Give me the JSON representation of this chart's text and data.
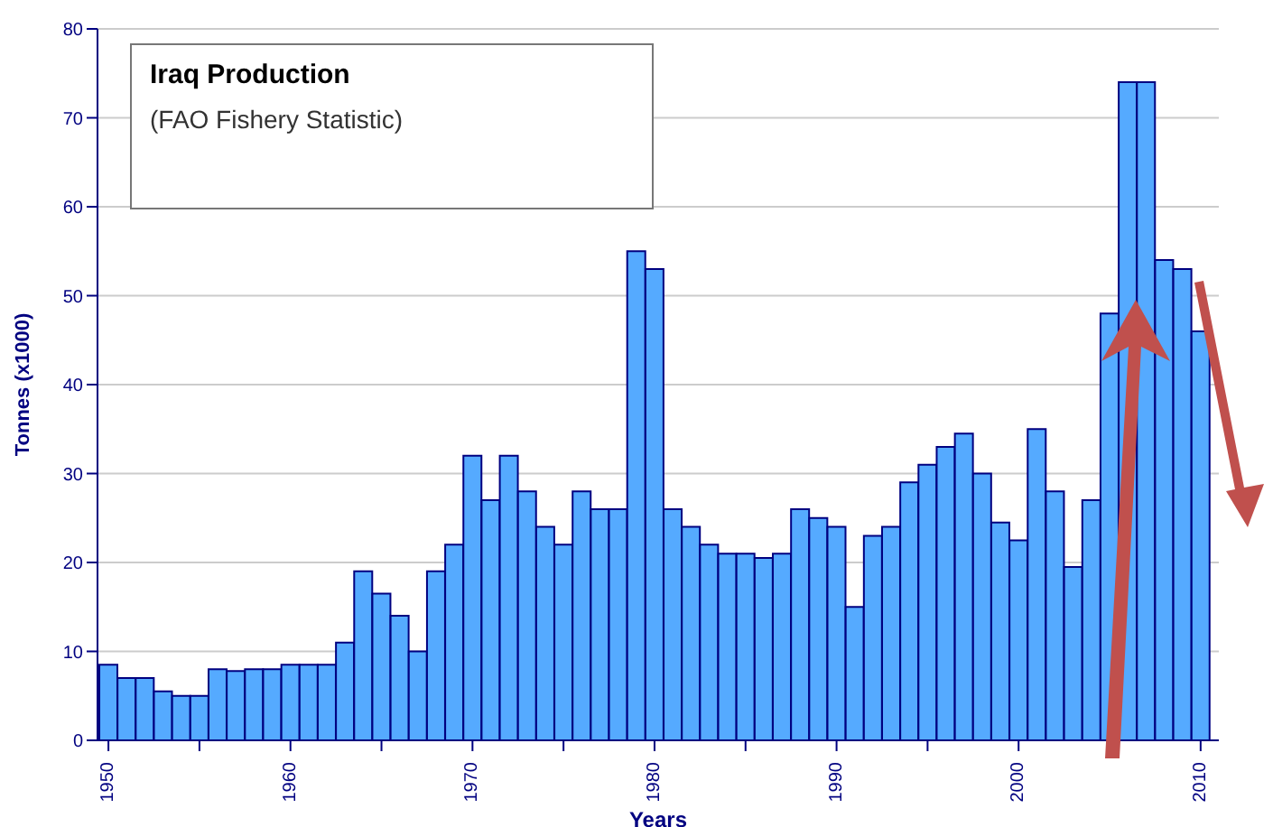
{
  "chart_data": {
    "type": "bar",
    "title": "Iraq Production",
    "subtitle": "(FAO Fishery Statistic)",
    "xlabel": "Years",
    "ylabel": "Tonnes (x1000)",
    "x": [
      1950,
      1951,
      1952,
      1953,
      1954,
      1955,
      1956,
      1957,
      1958,
      1959,
      1960,
      1961,
      1962,
      1963,
      1964,
      1965,
      1966,
      1967,
      1968,
      1969,
      1970,
      1971,
      1972,
      1973,
      1974,
      1975,
      1976,
      1977,
      1978,
      1979,
      1980,
      1981,
      1982,
      1983,
      1984,
      1985,
      1986,
      1987,
      1988,
      1989,
      1990,
      1991,
      1992,
      1993,
      1994,
      1995,
      1996,
      1997,
      1998,
      1999,
      2000,
      2001,
      2002,
      2003,
      2004,
      2005,
      2006,
      2007,
      2008,
      2009,
      2010
    ],
    "values": [
      8.5,
      7,
      7,
      5.5,
      5,
      5,
      8,
      7.8,
      8,
      8,
      8.5,
      8.5,
      8.5,
      11,
      19,
      16.5,
      14,
      10,
      19,
      22,
      32,
      27,
      32,
      28,
      24,
      22,
      28,
      26,
      26,
      55,
      53,
      26,
      24,
      22,
      21,
      21,
      20.5,
      21,
      26,
      25,
      24,
      15,
      23,
      24,
      29,
      31,
      33,
      34.5,
      30,
      24.5,
      22.5,
      35,
      28,
      19.5,
      27,
      48,
      74,
      74,
      54,
      53,
      46
    ],
    "color": "#55aaff",
    "xlim": [
      1949.4,
      2011
    ],
    "xticks": [
      1950,
      {
        "value": 1955,
        "label": null
      },
      1960,
      {
        "value": 1965,
        "label": null
      },
      1970,
      {
        "value": 1975,
        "label": null
      },
      1980,
      {
        "value": 1985,
        "label": null
      },
      1990,
      {
        "value": 1995,
        "label": null
      },
      2000,
      {
        "value": 2005,
        "label": null
      },
      2010
    ],
    "ylim": [
      0,
      80
    ],
    "yticks": [
      0,
      10,
      20,
      30,
      40,
      50,
      60,
      70,
      80
    ],
    "grid": "y"
  }
}
